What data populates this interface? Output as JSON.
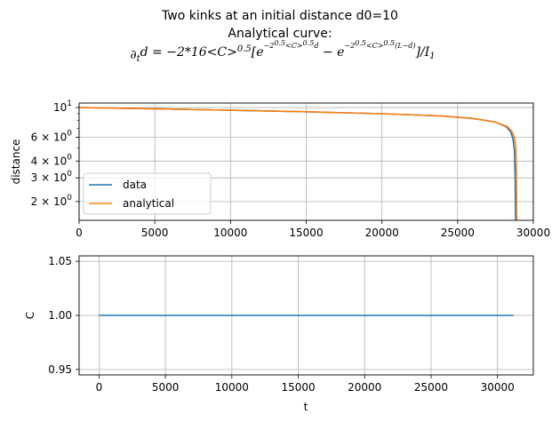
{
  "figure": {
    "title_line1": "Two kinks at an initial distance d0=10",
    "title_line2": "Analytical curve:",
    "title_line3": "∂td = −2*16<C>0.5[e−20.5<C>0.5d − e−20.5<C>0.5(L−d)]/I1"
  },
  "colors": {
    "data": "#1f77b4",
    "analytical": "#ff7f0e",
    "grid": "#b0b0b0"
  },
  "chart_data": [
    {
      "type": "line",
      "yscale": "log",
      "xlabel": "",
      "ylabel": "distance",
      "xlim": [
        0,
        30000
      ],
      "ylim": [
        1.45,
        10.8
      ],
      "grid": true,
      "legend_position": "lower-left",
      "xticks": [
        0,
        5000,
        10000,
        15000,
        20000,
        25000,
        30000
      ],
      "yticks": [
        {
          "value": 10,
          "base": "10",
          "exp": "1"
        },
        {
          "value": 6,
          "base": "6 × 10",
          "exp": "0"
        },
        {
          "value": 4,
          "base": "4 × 10",
          "exp": "0"
        },
        {
          "value": 3,
          "base": "3 × 10",
          "exp": "0"
        },
        {
          "value": 2,
          "base": "2 × 10",
          "exp": "0"
        }
      ],
      "series": [
        {
          "name": "data",
          "x": [
            0,
            5000,
            10000,
            15000,
            20000,
            24000,
            26000,
            27500,
            28200,
            28500,
            28650,
            28750,
            28800,
            28830
          ],
          "y": [
            10.0,
            9.8,
            9.55,
            9.3,
            9.0,
            8.65,
            8.3,
            7.8,
            7.2,
            6.6,
            5.9,
            4.8,
            3.0,
            1.45
          ]
        },
        {
          "name": "analytical",
          "x": [
            0,
            5000,
            10000,
            15000,
            20000,
            24000,
            26000,
            27500,
            28300,
            28600,
            28750,
            28850,
            28880,
            28900
          ],
          "y": [
            10.0,
            9.8,
            9.55,
            9.3,
            9.0,
            8.65,
            8.3,
            7.8,
            7.2,
            6.6,
            6.0,
            5.0,
            3.2,
            1.45
          ]
        }
      ]
    },
    {
      "type": "line",
      "xlabel": "t",
      "ylabel": "C",
      "xlim": [
        -1500,
        32700
      ],
      "ylim": [
        0.945,
        1.055
      ],
      "grid": true,
      "xticks": [
        0,
        5000,
        10000,
        15000,
        20000,
        25000,
        30000
      ],
      "yticks": [
        0.95,
        1.0,
        1.05
      ],
      "ytick_labels": [
        "0.95",
        "1.00",
        "1.05"
      ],
      "series": [
        {
          "x": [
            0,
            31200
          ],
          "y": [
            1.0,
            1.0
          ]
        }
      ]
    }
  ]
}
